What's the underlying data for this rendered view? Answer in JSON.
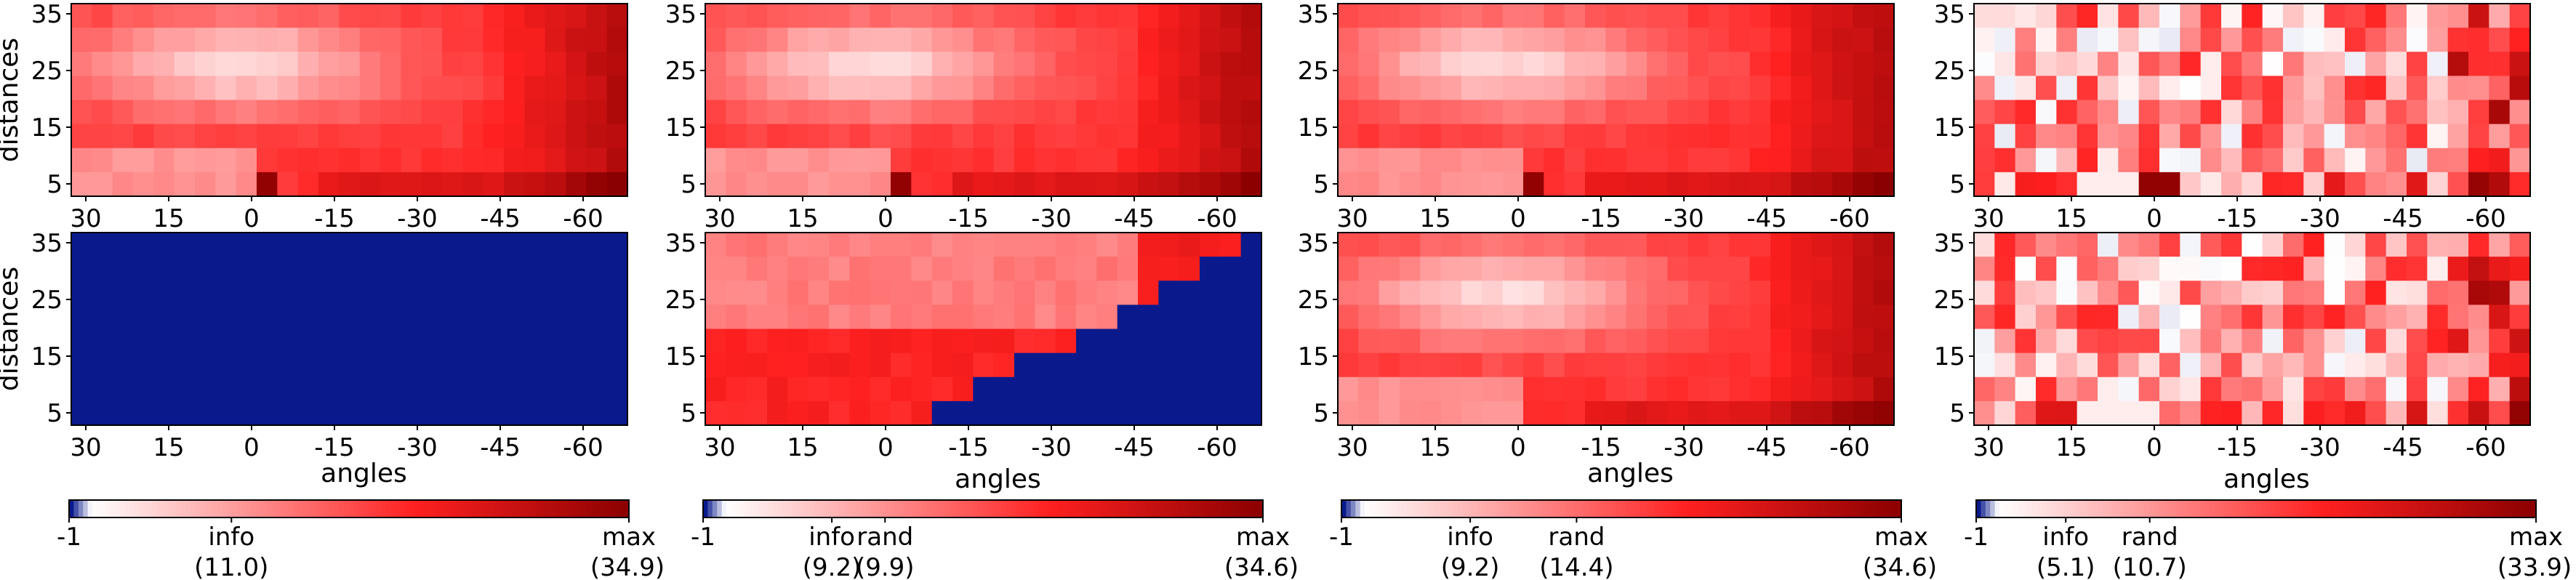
{
  "chart_data": {
    "type": "heatmap",
    "x_tick_labels": [
      "30",
      "15",
      "0",
      "-15",
      "-30",
      "-45",
      "-60"
    ],
    "y_tick_labels": [
      "35",
      "25",
      "15",
      "5"
    ],
    "xlabel": "angles",
    "ylabel": "distances",
    "colormap": {
      "stops": [
        "#0a1a8c",
        "#ffffff",
        "#ff2020",
        "#8a0000"
      ]
    },
    "panels": [
      {
        "id": "col1-top",
        "pattern": "smooth",
        "peak": {
          "a": 0,
          "d": 5
        }
      },
      {
        "id": "col1-bottom",
        "pattern": "blank"
      },
      {
        "id": "col2-top",
        "pattern": "smooth",
        "peak": {
          "a": -1,
          "d": 5
        }
      },
      {
        "id": "col2-bottom",
        "pattern": "diagonal"
      },
      {
        "id": "col3-top",
        "pattern": "smooth",
        "peak": {
          "a": -1,
          "d": 5
        }
      },
      {
        "id": "col3-bottom",
        "pattern": "smooth",
        "peak": null
      },
      {
        "id": "col4-top",
        "pattern": "noisy",
        "peak": {
          "a": 1,
          "d": 5
        }
      },
      {
        "id": "col4-bottom",
        "pattern": "noisy",
        "peak": null
      }
    ],
    "colorbars": [
      {
        "min_label": "-1",
        "max_label": "max",
        "max_value": "(34.9)",
        "markers": [
          {
            "label": "info",
            "value": "(11.0)"
          }
        ]
      },
      {
        "min_label": "-1",
        "max_label": "max",
        "max_value": "(34.6)",
        "markers": [
          {
            "label": "info",
            "value": "(9.2)"
          },
          {
            "label": "rand",
            "value": "(9.9)"
          }
        ]
      },
      {
        "min_label": "-1",
        "max_label": "max",
        "max_value": "(34.6)",
        "markers": [
          {
            "label": "info",
            "value": "(9.2)"
          },
          {
            "label": "rand",
            "value": "(14.4)"
          }
        ]
      },
      {
        "min_label": "-1",
        "max_label": "max",
        "max_value": "(33.9)",
        "markers": [
          {
            "label": "info",
            "value": "(5.1)"
          },
          {
            "label": "rand",
            "value": "(10.7)"
          }
        ]
      }
    ]
  }
}
